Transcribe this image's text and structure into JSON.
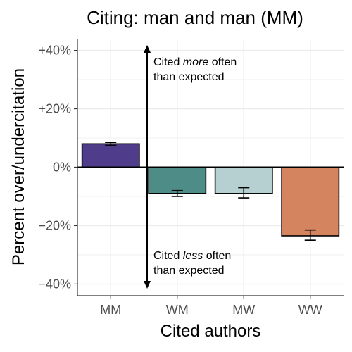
{
  "chart_data": {
    "type": "bar",
    "title": "Citing: man and man (MM)",
    "xlabel": "Cited authors",
    "ylabel": "Percent over/undercitation",
    "categories": [
      "MM",
      "WM",
      "MW",
      "WW"
    ],
    "values": [
      8,
      -9,
      -9,
      -23.5
    ],
    "error_low": [
      7.5,
      -10,
      -10.5,
      -25
    ],
    "error_high": [
      8.5,
      -8,
      -7,
      -21.5
    ],
    "colors": [
      "#4f3d8c",
      "#4e8c88",
      "#b6cfd0",
      "#d4845f"
    ],
    "ylim": [
      -44,
      44
    ],
    "yticks": [
      -40,
      -20,
      0,
      20,
      40
    ],
    "ytick_labels": [
      "−40%",
      "−20%",
      "0%",
      "+20%",
      "+40%"
    ],
    "grid": true,
    "annotations": {
      "upper": {
        "line1_prefix": "Cited ",
        "line1_emphasis": "more",
        "line1_suffix": " often",
        "line2": "than expected"
      },
      "lower": {
        "line1_prefix": "Cited ",
        "line1_emphasis": "less",
        "line1_suffix": " often",
        "line2": "than expected"
      }
    }
  }
}
